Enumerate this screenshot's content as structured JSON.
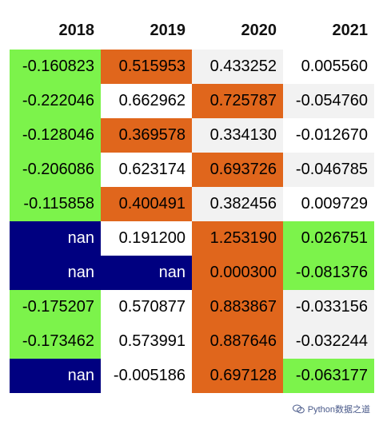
{
  "table": {
    "headers": [
      "2018",
      "2019",
      "2020",
      "2021"
    ],
    "rows": [
      [
        {
          "v": "-0.160823",
          "bg": "#7cf34b",
          "fg": "#000000"
        },
        {
          "v": "0.515953",
          "bg": "#e0661c",
          "fg": "#000000"
        },
        {
          "v": "0.433252",
          "bg": "#f2f2f2",
          "fg": "#000000"
        },
        {
          "v": "0.005560",
          "bg": "#ffffff",
          "fg": "#000000"
        }
      ],
      [
        {
          "v": "-0.222046",
          "bg": "#7cf34b",
          "fg": "#000000"
        },
        {
          "v": "0.662962",
          "bg": "#ffffff",
          "fg": "#000000"
        },
        {
          "v": "0.725787",
          "bg": "#e0661c",
          "fg": "#000000"
        },
        {
          "v": "-0.054760",
          "bg": "#f2f2f2",
          "fg": "#000000"
        }
      ],
      [
        {
          "v": "-0.128046",
          "bg": "#7cf34b",
          "fg": "#000000"
        },
        {
          "v": "0.369578",
          "bg": "#e0661c",
          "fg": "#000000"
        },
        {
          "v": "0.334130",
          "bg": "#f2f2f2",
          "fg": "#000000"
        },
        {
          "v": "-0.012670",
          "bg": "#ffffff",
          "fg": "#000000"
        }
      ],
      [
        {
          "v": "-0.206086",
          "bg": "#7cf34b",
          "fg": "#000000"
        },
        {
          "v": "0.623174",
          "bg": "#ffffff",
          "fg": "#000000"
        },
        {
          "v": "0.693726",
          "bg": "#e0661c",
          "fg": "#000000"
        },
        {
          "v": "-0.046785",
          "bg": "#f2f2f2",
          "fg": "#000000"
        }
      ],
      [
        {
          "v": "-0.115858",
          "bg": "#7cf34b",
          "fg": "#000000"
        },
        {
          "v": "0.400491",
          "bg": "#e0661c",
          "fg": "#000000"
        },
        {
          "v": "0.382456",
          "bg": "#f2f2f2",
          "fg": "#000000"
        },
        {
          "v": "0.009729",
          "bg": "#ffffff",
          "fg": "#000000"
        }
      ],
      [
        {
          "v": "nan",
          "bg": "#000080",
          "fg": "#ffffff"
        },
        {
          "v": "0.191200",
          "bg": "#ffffff",
          "fg": "#000000"
        },
        {
          "v": "1.253190",
          "bg": "#e0661c",
          "fg": "#000000"
        },
        {
          "v": "0.026751",
          "bg": "#7cf34b",
          "fg": "#000000"
        }
      ],
      [
        {
          "v": "nan",
          "bg": "#000080",
          "fg": "#ffffff"
        },
        {
          "v": "nan",
          "bg": "#000080",
          "fg": "#ffffff"
        },
        {
          "v": "0.000300",
          "bg": "#e0661c",
          "fg": "#000000"
        },
        {
          "v": "-0.081376",
          "bg": "#7cf34b",
          "fg": "#000000"
        }
      ],
      [
        {
          "v": "-0.175207",
          "bg": "#7cf34b",
          "fg": "#000000"
        },
        {
          "v": "0.570877",
          "bg": "#ffffff",
          "fg": "#000000"
        },
        {
          "v": "0.883867",
          "bg": "#e0661c",
          "fg": "#000000"
        },
        {
          "v": "-0.033156",
          "bg": "#f2f2f2",
          "fg": "#000000"
        }
      ],
      [
        {
          "v": "-0.173462",
          "bg": "#7cf34b",
          "fg": "#000000"
        },
        {
          "v": "0.573991",
          "bg": "#ffffff",
          "fg": "#000000"
        },
        {
          "v": "0.887646",
          "bg": "#e0661c",
          "fg": "#000000"
        },
        {
          "v": "-0.032244",
          "bg": "#f2f2f2",
          "fg": "#000000"
        }
      ],
      [
        {
          "v": "nan",
          "bg": "#000080",
          "fg": "#ffffff"
        },
        {
          "v": "-0.005186",
          "bg": "#ffffff",
          "fg": "#000000"
        },
        {
          "v": "0.697128",
          "bg": "#e0661c",
          "fg": "#000000"
        },
        {
          "v": "-0.063177",
          "bg": "#7cf34b",
          "fg": "#000000"
        }
      ]
    ]
  },
  "watermark": {
    "text": "Python数据之道",
    "icon": "wechat-icon"
  }
}
